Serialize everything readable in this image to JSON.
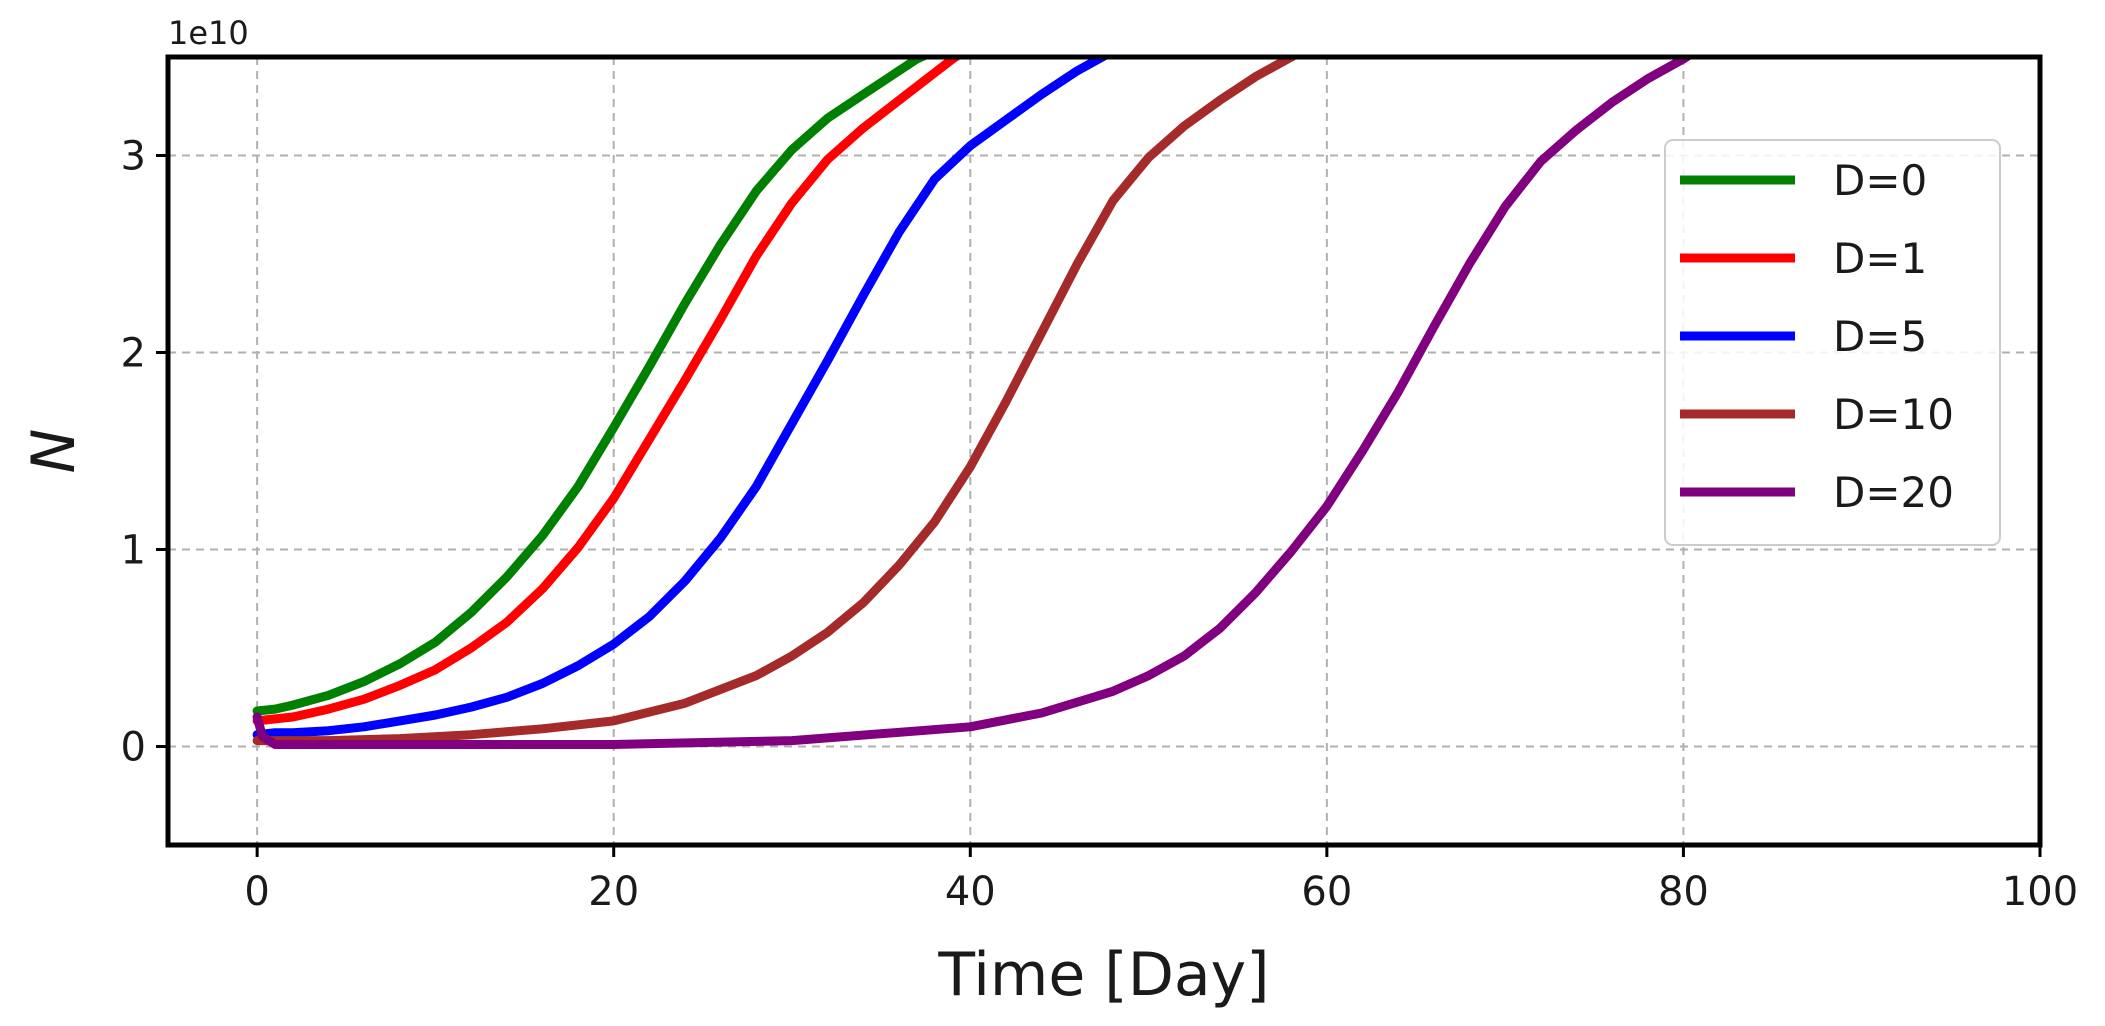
{
  "chart_data": {
    "type": "line",
    "xlabel": "Time [Day]",
    "ylabel": "N",
    "y_offset_label": "1e10",
    "xlim": [
      -5,
      100
    ],
    "ylim": [
      -0.5,
      3.5
    ],
    "xticks": [
      0,
      20,
      40,
      60,
      80,
      100
    ],
    "yticks": [
      0,
      1,
      2,
      3
    ],
    "grid": true,
    "legend_position": "top-right",
    "series": [
      {
        "name": "D=0",
        "color": "#008000",
        "x": [
          0,
          1,
          2,
          4,
          6,
          8,
          10,
          12,
          14,
          16,
          18,
          20,
          22,
          24,
          26,
          28,
          30,
          32,
          34,
          36,
          37,
          38
        ],
        "y": [
          0.18,
          0.19,
          0.21,
          0.26,
          0.33,
          0.42,
          0.53,
          0.68,
          0.86,
          1.07,
          1.32,
          1.62,
          1.93,
          2.25,
          2.55,
          2.82,
          3.03,
          3.19,
          3.31,
          3.43,
          3.49,
          3.53
        ]
      },
      {
        "name": "D=1",
        "color": "#ff0000",
        "x": [
          0,
          1,
          2,
          4,
          6,
          8,
          10,
          12,
          14,
          16,
          18,
          20,
          22,
          24,
          26,
          28,
          30,
          32,
          34,
          36,
          38,
          39,
          40
        ],
        "y": [
          0.13,
          0.14,
          0.15,
          0.19,
          0.24,
          0.31,
          0.39,
          0.5,
          0.63,
          0.8,
          1.01,
          1.26,
          1.56,
          1.86,
          2.17,
          2.49,
          2.76,
          2.98,
          3.14,
          3.28,
          3.42,
          3.49,
          3.55
        ]
      },
      {
        "name": "D=5",
        "color": "#0000ff",
        "x": [
          0,
          1,
          2,
          4,
          6,
          8,
          10,
          12,
          14,
          16,
          18,
          20,
          22,
          24,
          26,
          28,
          30,
          32,
          34,
          36,
          38,
          40,
          42,
          44,
          46,
          48
        ],
        "y": [
          0.06,
          0.07,
          0.07,
          0.08,
          0.1,
          0.13,
          0.16,
          0.2,
          0.25,
          0.32,
          0.41,
          0.52,
          0.66,
          0.84,
          1.06,
          1.32,
          1.64,
          1.96,
          2.29,
          2.61,
          2.88,
          3.05,
          3.18,
          3.31,
          3.43,
          3.53
        ]
      },
      {
        "name": "D=10",
        "color": "#a52a2a",
        "x": [
          0,
          1,
          4,
          8,
          12,
          16,
          20,
          24,
          28,
          30,
          32,
          34,
          36,
          38,
          40,
          42,
          44,
          46,
          48,
          50,
          52,
          54,
          56,
          58,
          59
        ],
        "y": [
          0.03,
          0.03,
          0.03,
          0.04,
          0.06,
          0.09,
          0.13,
          0.22,
          0.36,
          0.46,
          0.58,
          0.73,
          0.92,
          1.14,
          1.42,
          1.75,
          2.1,
          2.45,
          2.77,
          2.99,
          3.15,
          3.28,
          3.4,
          3.5,
          3.55
        ]
      },
      {
        "name": "D=20",
        "color": "#800080",
        "x": [
          0,
          0.3,
          1,
          5,
          10,
          20,
          30,
          40,
          44,
          48,
          50,
          52,
          54,
          56,
          58,
          60,
          62,
          64,
          66,
          68,
          70,
          72,
          74,
          76,
          78,
          80,
          81
        ],
        "y": [
          0.15,
          0.05,
          0.01,
          0.01,
          0.01,
          0.01,
          0.03,
          0.1,
          0.17,
          0.28,
          0.36,
          0.46,
          0.6,
          0.78,
          0.99,
          1.22,
          1.5,
          1.8,
          2.13,
          2.45,
          2.74,
          2.97,
          3.13,
          3.27,
          3.39,
          3.49,
          3.55
        ]
      }
    ]
  }
}
